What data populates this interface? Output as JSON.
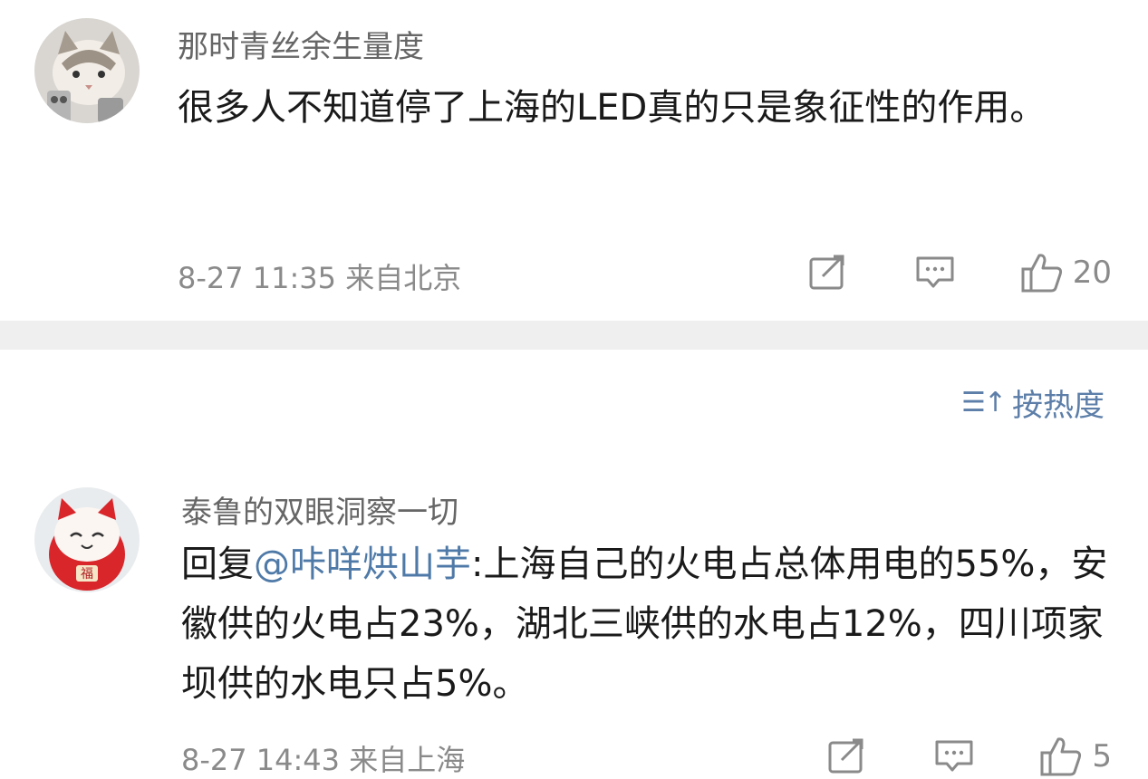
{
  "comments": [
    {
      "username": "那时青丝余生量度",
      "text": "很多人不知道停了上海的LED真的只是象征性的作用。",
      "date": "8-27 11:35",
      "location": "来自北京",
      "likes": "20",
      "icons": [
        "share-icon",
        "comment-icon",
        "like-icon"
      ]
    },
    {
      "username": "泰鲁的双眼洞察一切",
      "reply_prefix": "回复",
      "mention": "@咔咩烘山芋",
      "text": ":上海自己的火电占总体用电的55%，安徽供的火电占23%，湖北三峡供的水电占12%，四川项家坝供的水电只占5%。",
      "date": "8-27 14:43",
      "location": "来自上海",
      "likes": "5",
      "icons": [
        "share-icon",
        "comment-icon",
        "like-icon"
      ]
    }
  ],
  "sort": {
    "label": "按热度",
    "icon": "sort-icon"
  },
  "colors": {
    "mention": "#4f7aa8",
    "divider": "#efefef",
    "meta": "#8a8a8a"
  }
}
